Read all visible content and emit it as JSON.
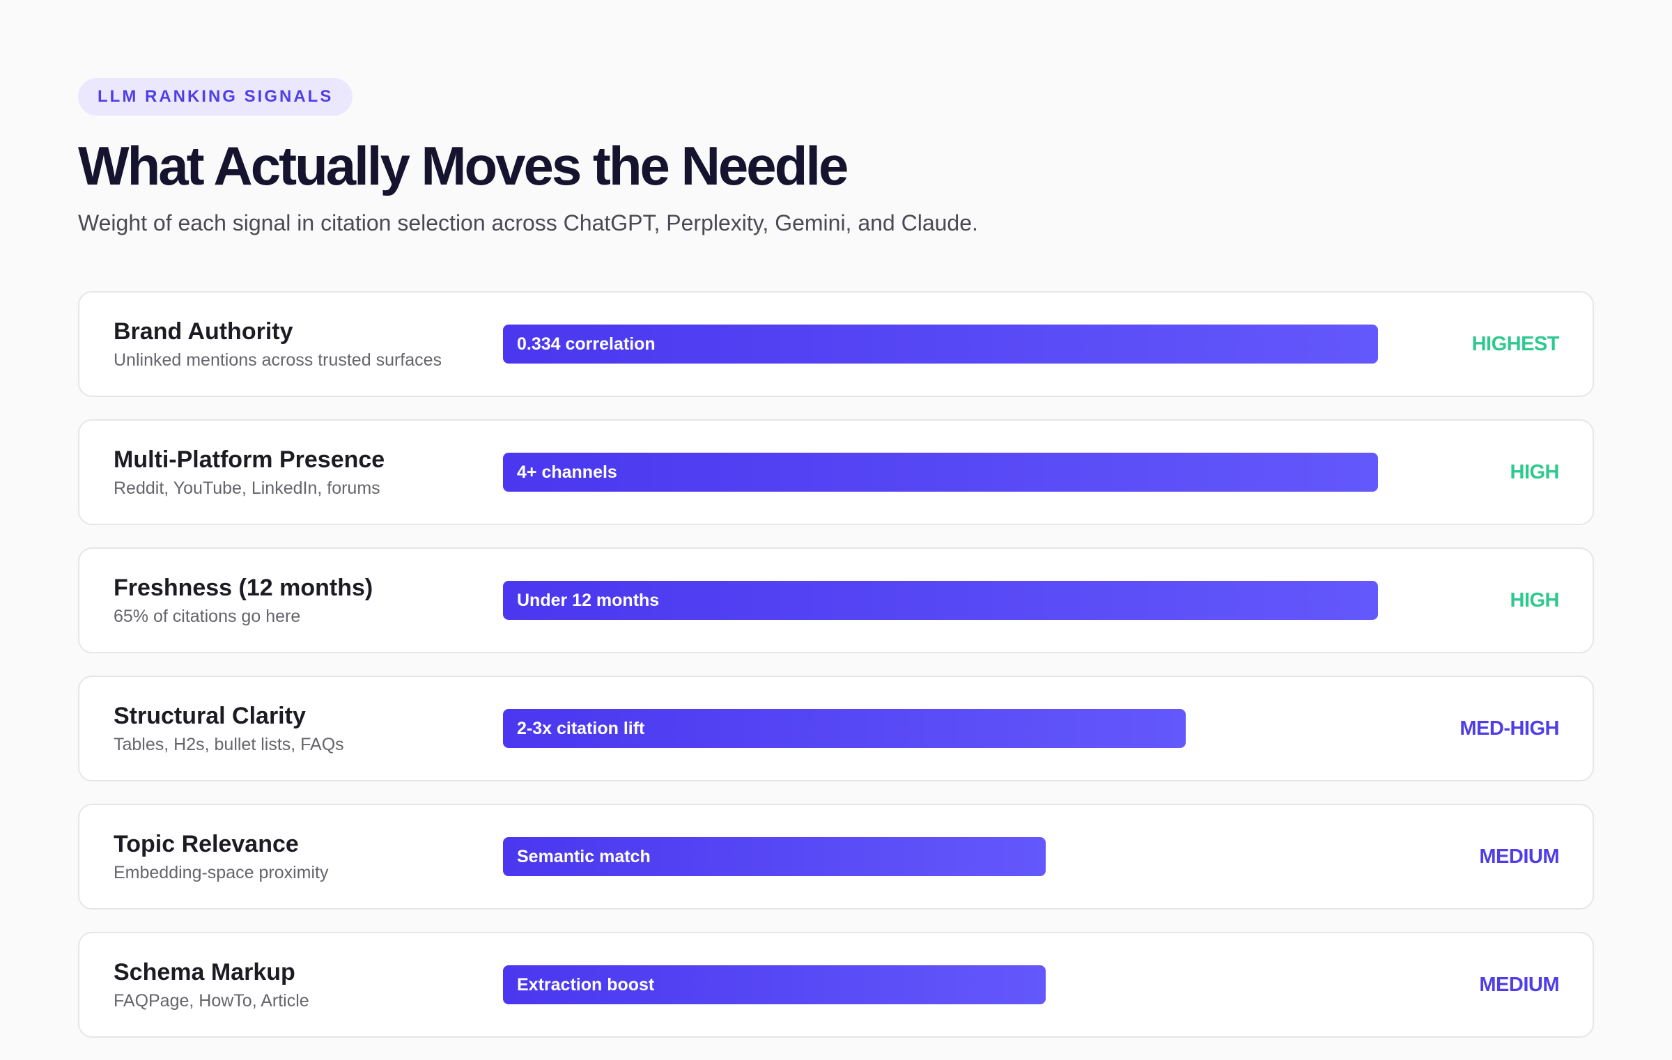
{
  "header": {
    "tag": "LLM RANKING SIGNALS",
    "title": "What Actually Moves the Needle",
    "subtitle": "Weight of each signal in citation selection across ChatGPT, Perplexity, Gemini, and Claude."
  },
  "colors": {
    "accent": "#4f3ee6",
    "bar_start": "#4a37ef",
    "bar_end": "#6358fb",
    "high_tier": "#2dc98f",
    "mid_tier": "#4f3ee6"
  },
  "chart_data": {
    "type": "bar",
    "orientation": "horizontal",
    "categories": [
      "Brand Authority",
      "Multi-Platform Presence",
      "Freshness (12 months)",
      "Structural Clarity",
      "Topic Relevance",
      "Schema Markup"
    ],
    "values": [
      1.0,
      1.0,
      1.0,
      0.78,
      0.62,
      0.62
    ],
    "scale_max": 1.0,
    "rows": [
      {
        "name": "Brand Authority",
        "description": "Unlinked mentions across trusted surfaces",
        "bar_label": "0.334 correlation",
        "value": 1.0,
        "tier": "HIGHEST",
        "tier_color": "#2dc98f"
      },
      {
        "name": "Multi-Platform Presence",
        "description": "Reddit, YouTube, LinkedIn, forums",
        "bar_label": "4+ channels",
        "value": 1.0,
        "tier": "HIGH",
        "tier_color": "#2dc98f"
      },
      {
        "name": "Freshness (12 months)",
        "description": "65% of citations go here",
        "bar_label": "Under 12 months",
        "value": 1.0,
        "tier": "HIGH",
        "tier_color": "#2dc98f"
      },
      {
        "name": "Structural Clarity",
        "description": "Tables, H2s, bullet lists, FAQs",
        "bar_label": "2-3x citation lift",
        "value": 0.78,
        "tier": "MED-HIGH",
        "tier_color": "#4f3ee6"
      },
      {
        "name": "Topic Relevance",
        "description": "Embedding-space proximity",
        "bar_label": "Semantic match",
        "value": 0.62,
        "tier": "MEDIUM",
        "tier_color": "#4f3ee6"
      },
      {
        "name": "Schema Markup",
        "description": "FAQPage, HowTo, Article",
        "bar_label": "Extraction boost",
        "value": 0.62,
        "tier": "MEDIUM",
        "tier_color": "#4f3ee6"
      }
    ]
  }
}
